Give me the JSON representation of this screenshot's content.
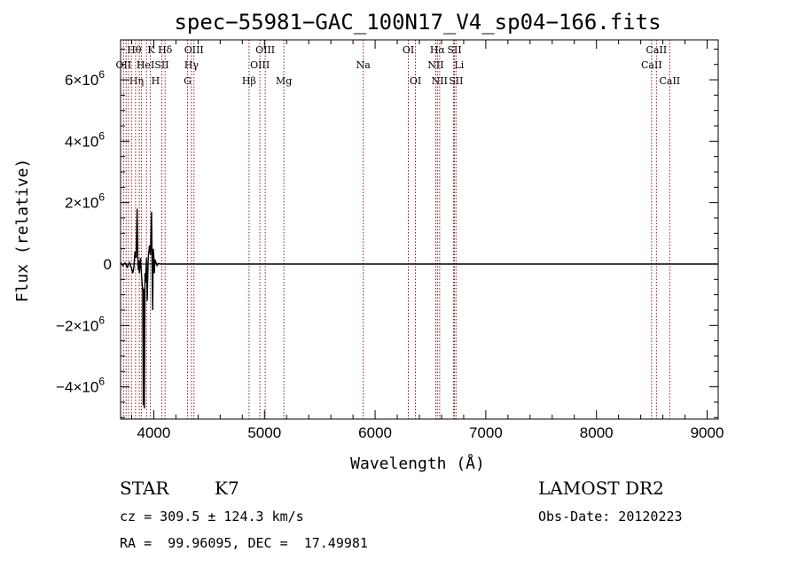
{
  "chart_data": {
    "type": "line",
    "title": "spec−55981−GAC_100N17_V4_sp04−166.fits",
    "xlabel": "Wavelength (Å)",
    "ylabel": "Flux (relative)",
    "xlim": [
      3700,
      9100
    ],
    "ylim": [
      -5050000,
      7300000
    ],
    "x_ticks": [
      {
        "value": 4000,
        "label": "4000"
      },
      {
        "value": 5000,
        "label": "5000"
      },
      {
        "value": 6000,
        "label": "6000"
      },
      {
        "value": 7000,
        "label": "7000"
      },
      {
        "value": 8000,
        "label": "8000"
      },
      {
        "value": 9000,
        "label": "9000"
      }
    ],
    "y_ticks": [
      {
        "value": 6000000,
        "mant": "6×10",
        "exp": "6"
      },
      {
        "value": 4000000,
        "mant": "4×10",
        "exp": "6"
      },
      {
        "value": 2000000,
        "mant": "2×10",
        "exp": "6"
      },
      {
        "value": 0,
        "mant": "0",
        "exp": ""
      },
      {
        "value": -2000000,
        "mant": "−2×10",
        "exp": "6"
      },
      {
        "value": -4000000,
        "mant": "−4×10",
        "exp": "6"
      }
    ],
    "grid": false,
    "line_color": "#8b1a1a",
    "spectrum_color": "#000000",
    "zero_line": 0,
    "spectrum": {
      "x": [
        3700,
        3720,
        3740,
        3760,
        3780,
        3800,
        3810,
        3820,
        3830,
        3840,
        3850,
        3855,
        3860,
        3865,
        3870,
        3880,
        3890,
        3900,
        3905,
        3910,
        3915,
        3920,
        3925,
        3930,
        3935,
        3940,
        3950,
        3960,
        3970,
        3980,
        3985,
        3990,
        3995,
        4000,
        4005,
        4010,
        4020,
        4030,
        4040,
        4060,
        4080,
        4100,
        4200,
        5000,
        6000,
        7000,
        8000,
        9000,
        9100
      ],
      "y": [
        50000,
        -50000,
        40000,
        -100000,
        50000,
        -150000,
        -300000,
        -100000,
        400000,
        200000,
        1800000,
        300000,
        -200000,
        100000,
        -300000,
        200000,
        -400000,
        -900000,
        -4600000,
        -800000,
        -4700000,
        -300000,
        -600000,
        -150000,
        200000,
        -1200000,
        200000,
        600000,
        300000,
        1700000,
        -200000,
        -1500000,
        500000,
        300000,
        -300000,
        150000,
        50000,
        -50000,
        20000,
        0,
        0,
        0,
        0,
        0,
        0,
        0,
        0,
        0,
        0
      ]
    },
    "lines": [
      {
        "x": 3727,
        "label": "OII",
        "row": 1,
        "anchor": "middle"
      },
      {
        "x": 3750,
        "label": "Hθ",
        "row": 0,
        "anchor": "start"
      },
      {
        "x": 3771,
        "label": "Hη",
        "row": 2,
        "anchor": "start"
      },
      {
        "x": 3798,
        "label": "",
        "row": 0,
        "anchor": "start"
      },
      {
        "x": 3835,
        "label": "HeI",
        "row": 1,
        "anchor": "start"
      },
      {
        "x": 3869,
        "label": "",
        "row": 0,
        "anchor": "start"
      },
      {
        "x": 3889,
        "label": "",
        "row": 0,
        "anchor": "start"
      },
      {
        "x": 3934,
        "label": "K",
        "row": 0,
        "anchor": "start"
      },
      {
        "x": 3969,
        "label": "H",
        "row": 2,
        "anchor": "start"
      },
      {
        "x": 4072,
        "label": "SII",
        "row": 1,
        "anchor": "middle"
      },
      {
        "x": 4102,
        "label": "Hδ",
        "row": 0,
        "anchor": "middle"
      },
      {
        "x": 4305,
        "label": "G",
        "row": 2,
        "anchor": "middle"
      },
      {
        "x": 4340,
        "label": "Hγ",
        "row": 1,
        "anchor": "middle"
      },
      {
        "x": 4363,
        "label": "OIII",
        "row": 0,
        "anchor": "middle"
      },
      {
        "x": 4861,
        "label": "Hβ",
        "row": 2,
        "anchor": "middle"
      },
      {
        "x": 4959,
        "label": "OIII",
        "row": 1,
        "anchor": "middle"
      },
      {
        "x": 5007,
        "label": "OIII",
        "row": 0,
        "anchor": "middle"
      },
      {
        "x": 5175,
        "label": "Mg",
        "row": 2,
        "anchor": "middle"
      },
      {
        "x": 5893,
        "label": "Na",
        "row": 1,
        "anchor": "middle"
      },
      {
        "x": 6300,
        "label": "OI",
        "row": 0,
        "anchor": "middle"
      },
      {
        "x": 6364,
        "label": "OI",
        "row": 2,
        "anchor": "middle"
      },
      {
        "x": 6548,
        "label": "NII",
        "row": 1,
        "anchor": "middle"
      },
      {
        "x": 6563,
        "label": "Hα",
        "row": 0,
        "anchor": "middle"
      },
      {
        "x": 6583,
        "label": "NII",
        "row": 2,
        "anchor": "middle"
      },
      {
        "x": 6708,
        "label": "Li",
        "row": 1,
        "anchor": "start"
      },
      {
        "x": 6717,
        "label": "SII",
        "row": 0,
        "anchor": "middle"
      },
      {
        "x": 6731,
        "label": "SII",
        "row": 2,
        "anchor": "middle"
      },
      {
        "x": 8498,
        "label": "CaII",
        "row": 1,
        "anchor": "middle"
      },
      {
        "x": 8542,
        "label": "CaII",
        "row": 0,
        "anchor": "middle"
      },
      {
        "x": 8662,
        "label": "CaII",
        "row": 2,
        "anchor": "middle"
      }
    ]
  },
  "info": {
    "object_class": "STAR",
    "subclass": "K7",
    "survey": "LAMOST DR2",
    "cz": "cz = 309.5 ± 124.3 km/s",
    "obs_date": "Obs-Date: 20120223",
    "coords": "RA =  99.96095, DEC =  17.49981"
  }
}
